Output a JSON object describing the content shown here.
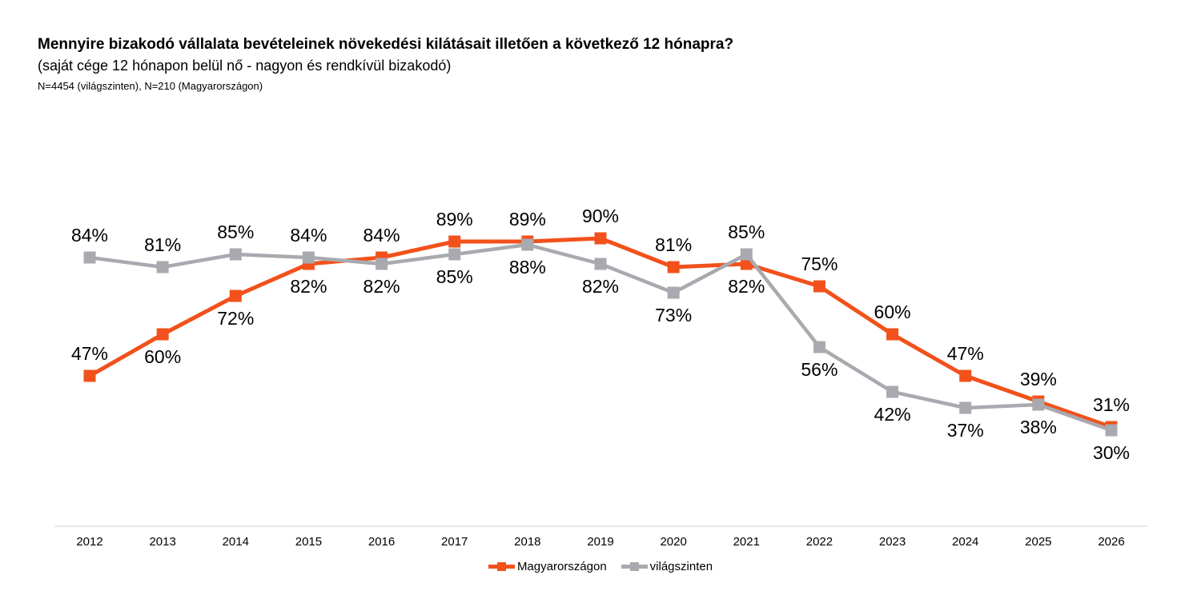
{
  "header": {
    "title": "Mennyire bizakodó vállalata bevételeinek növekedési kilátásait illetően a következő 12 hónapra?",
    "subtitle": "(saját cége 12 hónapon belül nő - nagyon és rendkívül bizakodó)",
    "note": "N=4454 (világszinten), N=210 (Magyarországon)"
  },
  "chart_data": {
    "type": "line",
    "categories": [
      "2012",
      "2013",
      "2014",
      "2015",
      "2016",
      "2017",
      "2018",
      "2019",
      "2020",
      "2021",
      "2022",
      "2023",
      "2024",
      "2025",
      "2026"
    ],
    "series": [
      {
        "name": "Magyarországon",
        "color": "#F2511B",
        "values": [
          47,
          60,
          72,
          82,
          84,
          89,
          89,
          90,
          81,
          82,
          75,
          60,
          47,
          39,
          31
        ],
        "label_positions": [
          "above",
          "below",
          "below",
          "below",
          "above",
          "above",
          "above",
          "above",
          "above",
          "below",
          "above",
          "above",
          "above",
          "above",
          "above"
        ]
      },
      {
        "name": "világszinten",
        "color": "#A9A9B0",
        "values": [
          84,
          81,
          85,
          84,
          82,
          85,
          88,
          82,
          73,
          85,
          56,
          42,
          37,
          38,
          30
        ],
        "label_positions": [
          "above",
          "above",
          "above",
          "above",
          "below",
          "below",
          "below",
          "below",
          "below",
          "above",
          "below",
          "below",
          "below",
          "below",
          "below"
        ]
      }
    ],
    "value_suffix": "%",
    "ylim": [
      0,
      100
    ],
    "grid": false,
    "legend_position": "bottom",
    "marker": "square",
    "axis_line_color": "#E9E9E9",
    "label_color": "#000000",
    "background": "#FFFFFF"
  }
}
